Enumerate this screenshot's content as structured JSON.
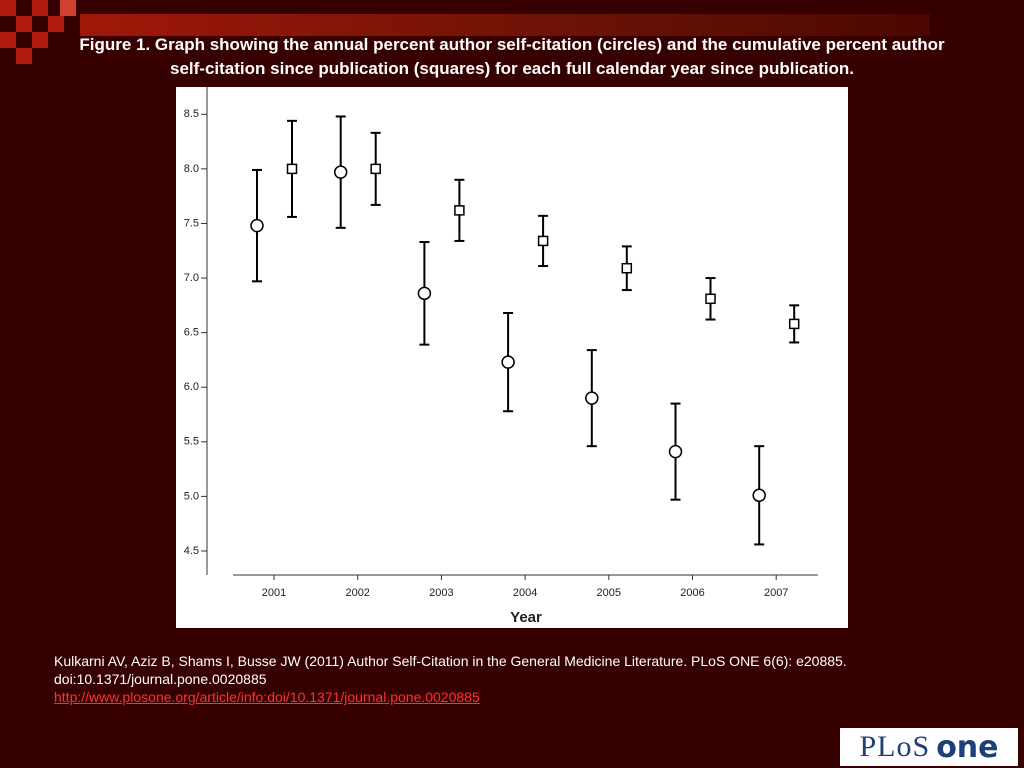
{
  "title": "Figure 1. Graph showing the annual percent author self-citation (circles) and the cumulative percent author self-citation since publication (squares) for each full calendar year since publication.",
  "chart_data": {
    "type": "errorbar",
    "xlabel": "Year",
    "categories": [
      "2001",
      "2002",
      "2003",
      "2004",
      "2005",
      "2006",
      "2007"
    ],
    "series": [
      {
        "marker": "circle",
        "color": "#000000",
        "values": [
          7.48,
          7.97,
          6.86,
          6.23,
          5.9,
          5.41,
          5.01
        ],
        "errors": [
          0.51,
          0.51,
          0.47,
          0.45,
          0.44,
          0.44,
          0.45
        ]
      },
      {
        "marker": "square",
        "color": "#000000",
        "values": [
          8.0,
          8.0,
          7.62,
          7.34,
          7.09,
          6.81,
          6.58
        ],
        "errors": [
          0.44,
          0.33,
          0.28,
          0.23,
          0.2,
          0.19,
          0.17
        ]
      }
    ],
    "ylim": [
      4.28,
      8.75
    ],
    "yticks": [
      8.5,
      {
        "value": 8,
        "label": "8.0"
      },
      7.5,
      {
        "value": 7,
        "label": "7.0"
      },
      6.5,
      {
        "value": 6,
        "label": "6.0"
      },
      5.5,
      {
        "value": 5,
        "label": "5.0"
      },
      4.5
    ]
  },
  "citation": [
    "Kulkarni AV, Aziz B, Shams I, Busse JW (2011) Author Self-Citation in the General Medicine Literature. PLoS ONE 6(6): e20885.",
    "doi:10.1371/journal.pone.0020885"
  ],
  "link": "http://www.plosone.org/article/info:doi/10.1371/journal.pone.0020885",
  "logo": [
    "PLoS",
    "one"
  ]
}
